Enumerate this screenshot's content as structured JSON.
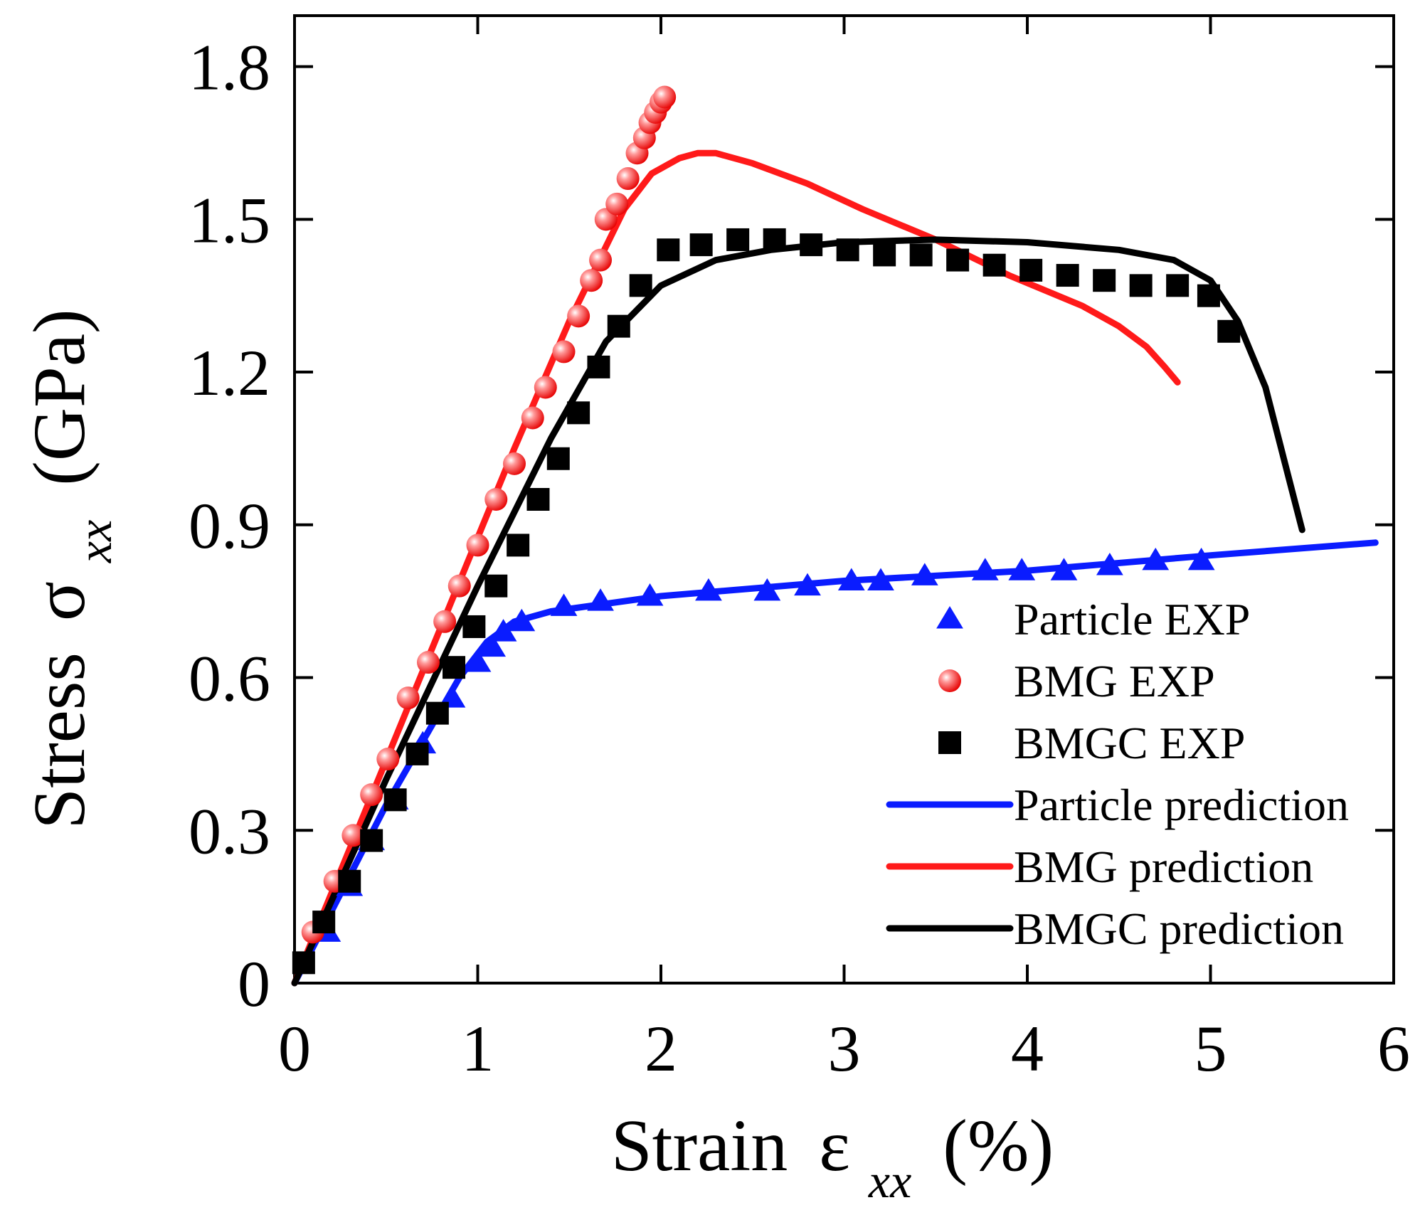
{
  "chart_data": {
    "type": "line",
    "title": "",
    "xlabel": {
      "main": "Strain",
      "symbol": "ε",
      "subscript": "xx",
      "unit": "(%)"
    },
    "ylabel": {
      "main": "Stress",
      "symbol": "σ",
      "subscript": "xx",
      "unit": "(GPa)"
    },
    "xlim": [
      0,
      6
    ],
    "ylim": [
      0,
      1.9
    ],
    "xticks": [
      0,
      1,
      2,
      3,
      4,
      5,
      6
    ],
    "yticks": [
      0,
      0.3,
      0.6,
      0.9,
      1.2,
      1.5,
      1.8
    ],
    "xtick_labels": [
      "0",
      "1",
      "2",
      "3",
      "4",
      "5",
      "6"
    ],
    "ytick_labels": [
      "0",
      "0.3",
      "0.6",
      "0.9",
      "1.2",
      "1.5",
      "1.8"
    ],
    "grid": false,
    "legend_position": "bottom-right",
    "series": [
      {
        "name": "Particle EXP",
        "kind": "scatter",
        "marker": "triangle",
        "color": "#0a1cff",
        "x": [
          0.18,
          0.3,
          0.42,
          0.55,
          0.7,
          0.86,
          1.0,
          1.08,
          1.14,
          1.24,
          1.47,
          1.67,
          1.94,
          2.26,
          2.58,
          2.8,
          3.04,
          3.2,
          3.44,
          3.77,
          3.97,
          4.2,
          4.45,
          4.7,
          4.95
        ],
        "y": [
          0.1,
          0.19,
          0.28,
          0.36,
          0.47,
          0.56,
          0.63,
          0.66,
          0.69,
          0.71,
          0.74,
          0.75,
          0.76,
          0.77,
          0.77,
          0.78,
          0.79,
          0.79,
          0.8,
          0.81,
          0.81,
          0.81,
          0.82,
          0.83,
          0.83
        ]
      },
      {
        "name": "BMG EXP",
        "kind": "scatter",
        "marker": "circle",
        "color": "#ff1a1a",
        "x": [
          0.1,
          0.22,
          0.32,
          0.42,
          0.51,
          0.62,
          0.73,
          0.82,
          0.9,
          1.0,
          1.1,
          1.2,
          1.3,
          1.37,
          1.47,
          1.55,
          1.62,
          1.67,
          1.7,
          1.76,
          1.82,
          1.87,
          1.91,
          1.94,
          1.97,
          2.0,
          2.02
        ],
        "y": [
          0.1,
          0.2,
          0.29,
          0.37,
          0.44,
          0.56,
          0.63,
          0.71,
          0.78,
          0.86,
          0.95,
          1.02,
          1.11,
          1.17,
          1.24,
          1.31,
          1.38,
          1.42,
          1.5,
          1.53,
          1.58,
          1.63,
          1.66,
          1.69,
          1.71,
          1.73,
          1.74
        ]
      },
      {
        "name": "BMGC EXP",
        "kind": "scatter",
        "marker": "square",
        "color": "#000000",
        "x": [
          0.05,
          0.16,
          0.3,
          0.42,
          0.55,
          0.67,
          0.78,
          0.87,
          0.98,
          1.1,
          1.22,
          1.33,
          1.44,
          1.55,
          1.66,
          1.77,
          1.89,
          2.04,
          2.22,
          2.42,
          2.62,
          2.82,
          3.02,
          3.22,
          3.42,
          3.62,
          3.82,
          4.02,
          4.22,
          4.42,
          4.62,
          4.82,
          4.99,
          5.1
        ],
        "y": [
          0.04,
          0.12,
          0.2,
          0.28,
          0.36,
          0.45,
          0.53,
          0.62,
          0.7,
          0.78,
          0.86,
          0.95,
          1.03,
          1.12,
          1.21,
          1.29,
          1.37,
          1.44,
          1.45,
          1.46,
          1.46,
          1.45,
          1.44,
          1.43,
          1.43,
          1.42,
          1.41,
          1.4,
          1.39,
          1.38,
          1.37,
          1.37,
          1.35,
          1.28
        ]
      },
      {
        "name": "Particle prediction",
        "kind": "line",
        "color": "#0a1cff",
        "x": [
          0,
          0.5,
          0.9,
          1.05,
          1.2,
          1.4,
          1.7,
          2.0,
          3.0,
          4.0,
          5.0,
          5.9
        ],
        "y": [
          0,
          0.35,
          0.6,
          0.67,
          0.71,
          0.73,
          0.745,
          0.76,
          0.79,
          0.81,
          0.84,
          0.865
        ]
      },
      {
        "name": "BMG prediction",
        "kind": "line",
        "color": "#ff1a1a",
        "x": [
          0,
          0.4,
          0.8,
          1.2,
          1.5,
          1.8,
          1.95,
          2.1,
          2.2,
          2.3,
          2.5,
          2.8,
          3.1,
          3.5,
          3.9,
          4.3,
          4.5,
          4.65,
          4.75,
          4.82
        ],
        "y": [
          0,
          0.35,
          0.7,
          1.05,
          1.3,
          1.52,
          1.59,
          1.62,
          1.63,
          1.63,
          1.61,
          1.57,
          1.52,
          1.46,
          1.39,
          1.33,
          1.29,
          1.25,
          1.21,
          1.18
        ]
      },
      {
        "name": "BMGC prediction",
        "kind": "line",
        "color": "#000000",
        "x": [
          0,
          0.5,
          1.0,
          1.4,
          1.7,
          2.0,
          2.3,
          2.6,
          3.0,
          3.5,
          4.0,
          4.5,
          4.8,
          5.0,
          5.15,
          5.3,
          5.4,
          5.5
        ],
        "y": [
          0,
          0.4,
          0.78,
          1.07,
          1.26,
          1.37,
          1.42,
          1.44,
          1.455,
          1.46,
          1.455,
          1.44,
          1.42,
          1.38,
          1.3,
          1.17,
          1.03,
          0.89
        ]
      }
    ]
  }
}
